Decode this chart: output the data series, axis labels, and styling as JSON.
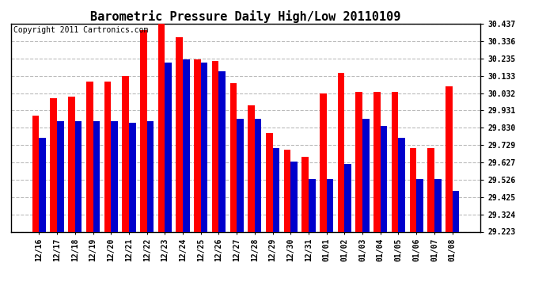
{
  "title": "Barometric Pressure Daily High/Low 20110109",
  "copyright": "Copyright 2011 Cartronics.com",
  "dates": [
    "12/16",
    "12/17",
    "12/18",
    "12/19",
    "12/20",
    "12/21",
    "12/22",
    "12/23",
    "12/24",
    "12/25",
    "12/26",
    "12/27",
    "12/28",
    "12/29",
    "12/30",
    "12/31",
    "01/01",
    "01/02",
    "01/03",
    "01/04",
    "01/05",
    "01/06",
    "01/07",
    "01/08"
  ],
  "highs": [
    29.9,
    30.0,
    30.01,
    30.1,
    30.1,
    30.13,
    30.4,
    30.44,
    30.36,
    30.23,
    30.22,
    30.09,
    29.96,
    29.8,
    29.7,
    29.66,
    30.03,
    30.15,
    30.04,
    30.04,
    30.04,
    29.71,
    29.71,
    30.07
  ],
  "lows": [
    29.77,
    29.87,
    29.87,
    29.87,
    29.87,
    29.86,
    29.87,
    30.21,
    30.23,
    30.21,
    30.16,
    29.88,
    29.88,
    29.71,
    29.63,
    29.53,
    29.53,
    29.62,
    29.88,
    29.84,
    29.77,
    29.53,
    29.53,
    29.46
  ],
  "ymin": 29.223,
  "ymax": 30.437,
  "yticks": [
    29.223,
    29.324,
    29.425,
    29.526,
    29.627,
    29.729,
    29.83,
    29.931,
    30.032,
    30.133,
    30.235,
    30.336,
    30.437
  ],
  "bar_width": 0.38,
  "high_color": "#ff0000",
  "low_color": "#0000cc",
  "bg_color": "#ffffff",
  "grid_color": "#bbbbbb",
  "title_fontsize": 11,
  "copyright_fontsize": 7
}
